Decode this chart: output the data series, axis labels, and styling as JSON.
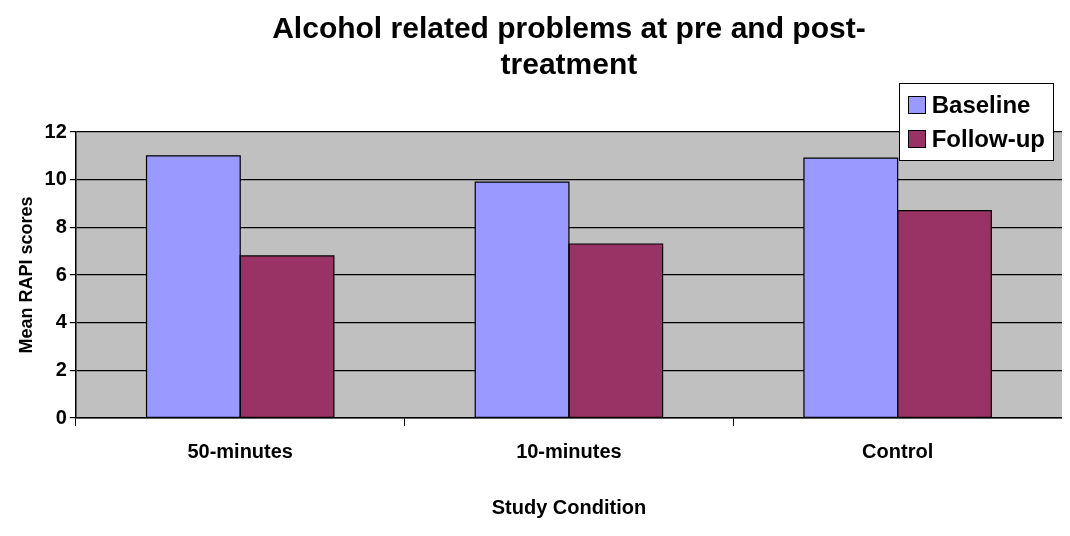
{
  "chart_data": {
    "type": "bar",
    "title": "Alcohol related problems at pre and post-treatment",
    "xlabel": "Study Condition",
    "ylabel": "Mean RAPI scores",
    "categories": [
      "50-minutes",
      "10-minutes",
      "Control"
    ],
    "series": [
      {
        "name": "Baseline",
        "color": "#9999ff",
        "values": [
          11,
          9.9,
          10.9
        ]
      },
      {
        "name": "Follow-up",
        "color": "#993366",
        "values": [
          6.8,
          7.3,
          8.7
        ]
      }
    ],
    "ylim": [
      0,
      12
    ],
    "yticks": [
      0,
      2,
      4,
      6,
      8,
      10,
      12
    ],
    "grid": "y",
    "legend": "top right"
  }
}
